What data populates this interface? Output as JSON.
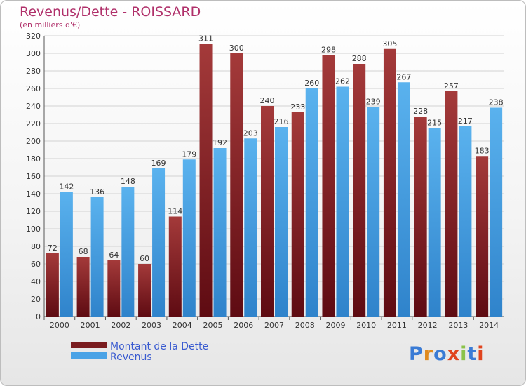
{
  "title": "Revenus/Dette - ROISSARD",
  "subtitle": "(en milliers d'€)",
  "colors": {
    "dette_dark": "#5e0b12",
    "dette_light": "#a43a3a",
    "revenus_dark": "#2f83cb",
    "revenus_light": "#5ab2ee",
    "title": "#b0306a",
    "legend_text": "#3a5bd0"
  },
  "legend": [
    {
      "label": "Montant de la Dette",
      "color": "#7a1c1f"
    },
    {
      "label": "Revenus",
      "color": "#4aa3e6"
    }
  ],
  "logo": {
    "text": "Proxiti",
    "letter_colors": [
      "#3a7bd5",
      "#e08a1e",
      "#3a7bd5",
      "#e0441e",
      "#8bc34a",
      "#3a7bd5",
      "#e0441e"
    ]
  },
  "chart_data": {
    "type": "bar",
    "categories": [
      "2000",
      "2001",
      "2002",
      "2003",
      "2004",
      "2005",
      "2006",
      "2007",
      "2008",
      "2009",
      "2010",
      "2011",
      "2012",
      "2013",
      "2014"
    ],
    "series": [
      {
        "name": "Montant de la Dette",
        "values": [
          72,
          68,
          64,
          60,
          114,
          311,
          300,
          240,
          233,
          298,
          288,
          305,
          228,
          257,
          183
        ]
      },
      {
        "name": "Revenus",
        "values": [
          142,
          136,
          148,
          169,
          179,
          192,
          203,
          216,
          260,
          262,
          239,
          267,
          215,
          217,
          238
        ]
      }
    ],
    "ylim": [
      0,
      320
    ],
    "yticks": [
      0,
      20,
      40,
      60,
      80,
      100,
      120,
      140,
      160,
      180,
      200,
      220,
      240,
      260,
      280,
      300,
      320
    ],
    "grid": true,
    "legend_position": "bottom-left"
  }
}
